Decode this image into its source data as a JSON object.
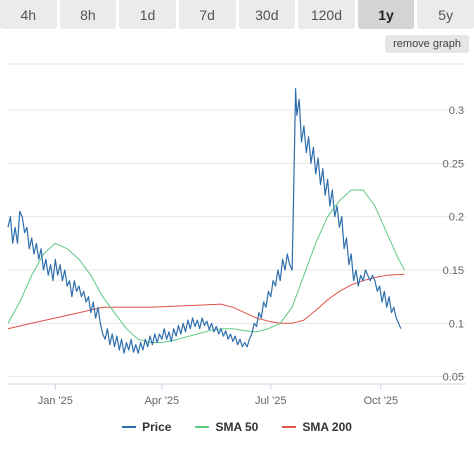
{
  "tabs": [
    {
      "label": "4h",
      "active": false
    },
    {
      "label": "8h",
      "active": false
    },
    {
      "label": "1d",
      "active": false
    },
    {
      "label": "7d",
      "active": false
    },
    {
      "label": "30d",
      "active": false
    },
    {
      "label": "120d",
      "active": false
    },
    {
      "label": "1y",
      "active": true
    },
    {
      "label": "5y",
      "active": false
    }
  ],
  "remove_graph_label": "remove graph",
  "colors": {
    "price": "#2f6fae",
    "sma50": "#5ec983",
    "sma200": "#e0554a",
    "grid": "#e6e6e6"
  },
  "chart_data": {
    "type": "line",
    "x_ticks": [
      "Jan '25",
      "Apr '25",
      "Jul '25",
      "Oct '25"
    ],
    "x_tick_days": [
      40,
      130,
      222,
      315
    ],
    "x_range_days": [
      0,
      365
    ],
    "y_ticks": [
      0.05,
      0.1,
      0.15,
      0.2,
      0.25,
      0.3
    ],
    "y_tick_labels": [
      "0.05",
      "0.1",
      "0.15",
      "0.2",
      "0.25",
      "0.3"
    ],
    "ylim": [
      0.045,
      0.345
    ],
    "legend_position": "bottom",
    "grid": true,
    "series": [
      {
        "name": "Price",
        "key": "price",
        "points": [
          [
            0,
            0.19
          ],
          [
            2,
            0.2
          ],
          [
            4,
            0.175
          ],
          [
            6,
            0.19
          ],
          [
            8,
            0.175
          ],
          [
            10,
            0.205
          ],
          [
            12,
            0.2
          ],
          [
            14,
            0.185
          ],
          [
            16,
            0.19
          ],
          [
            18,
            0.17
          ],
          [
            20,
            0.18
          ],
          [
            22,
            0.165
          ],
          [
            24,
            0.175
          ],
          [
            26,
            0.16
          ],
          [
            28,
            0.17
          ],
          [
            30,
            0.15
          ],
          [
            32,
            0.16
          ],
          [
            34,
            0.145
          ],
          [
            36,
            0.155
          ],
          [
            38,
            0.14
          ],
          [
            40,
            0.16
          ],
          [
            42,
            0.145
          ],
          [
            44,
            0.155
          ],
          [
            46,
            0.14
          ],
          [
            48,
            0.15
          ],
          [
            50,
            0.135
          ],
          [
            52,
            0.14
          ],
          [
            54,
            0.125
          ],
          [
            56,
            0.14
          ],
          [
            58,
            0.13
          ],
          [
            60,
            0.135
          ],
          [
            62,
            0.125
          ],
          [
            64,
            0.13
          ],
          [
            66,
            0.12
          ],
          [
            68,
            0.125
          ],
          [
            70,
            0.11
          ],
          [
            72,
            0.12
          ],
          [
            74,
            0.105
          ],
          [
            76,
            0.115
          ],
          [
            78,
            0.1
          ],
          [
            80,
            0.09
          ],
          [
            82,
            0.085
          ],
          [
            84,
            0.095
          ],
          [
            86,
            0.08
          ],
          [
            88,
            0.09
          ],
          [
            90,
            0.078
          ],
          [
            92,
            0.088
          ],
          [
            94,
            0.075
          ],
          [
            96,
            0.085
          ],
          [
            98,
            0.072
          ],
          [
            100,
            0.082
          ],
          [
            102,
            0.075
          ],
          [
            104,
            0.085
          ],
          [
            106,
            0.073
          ],
          [
            108,
            0.08
          ],
          [
            110,
            0.072
          ],
          [
            112,
            0.082
          ],
          [
            114,
            0.075
          ],
          [
            116,
            0.085
          ],
          [
            118,
            0.078
          ],
          [
            120,
            0.088
          ],
          [
            122,
            0.08
          ],
          [
            124,
            0.09
          ],
          [
            126,
            0.082
          ],
          [
            128,
            0.09
          ],
          [
            130,
            0.085
          ],
          [
            132,
            0.095
          ],
          [
            134,
            0.085
          ],
          [
            136,
            0.092
          ],
          [
            138,
            0.083
          ],
          [
            140,
            0.095
          ],
          [
            142,
            0.088
          ],
          [
            144,
            0.098
          ],
          [
            146,
            0.09
          ],
          [
            148,
            0.1
          ],
          [
            150,
            0.092
          ],
          [
            152,
            0.103
          ],
          [
            154,
            0.095
          ],
          [
            156,
            0.105
          ],
          [
            158,
            0.097
          ],
          [
            160,
            0.103
          ],
          [
            162,
            0.095
          ],
          [
            164,
            0.105
          ],
          [
            166,
            0.098
          ],
          [
            168,
            0.102
          ],
          [
            170,
            0.094
          ],
          [
            172,
            0.1
          ],
          [
            174,
            0.092
          ],
          [
            176,
            0.097
          ],
          [
            178,
            0.09
          ],
          [
            180,
            0.095
          ],
          [
            182,
            0.088
          ],
          [
            184,
            0.093
          ],
          [
            186,
            0.085
          ],
          [
            188,
            0.09
          ],
          [
            190,
            0.083
          ],
          [
            192,
            0.088
          ],
          [
            194,
            0.08
          ],
          [
            196,
            0.085
          ],
          [
            198,
            0.078
          ],
          [
            200,
            0.082
          ],
          [
            202,
            0.078
          ],
          [
            204,
            0.085
          ],
          [
            206,
            0.09
          ],
          [
            208,
            0.1
          ],
          [
            210,
            0.097
          ],
          [
            212,
            0.11
          ],
          [
            214,
            0.105
          ],
          [
            216,
            0.12
          ],
          [
            218,
            0.115
          ],
          [
            220,
            0.13
          ],
          [
            222,
            0.125
          ],
          [
            224,
            0.14
          ],
          [
            226,
            0.135
          ],
          [
            228,
            0.15
          ],
          [
            230,
            0.14
          ],
          [
            232,
            0.16
          ],
          [
            234,
            0.15
          ],
          [
            236,
            0.165
          ],
          [
            238,
            0.155
          ],
          [
            240,
            0.15
          ],
          [
            241,
            0.2
          ],
          [
            242,
            0.26
          ],
          [
            243,
            0.32
          ],
          [
            244,
            0.295
          ],
          [
            246,
            0.31
          ],
          [
            248,
            0.27
          ],
          [
            250,
            0.285
          ],
          [
            252,
            0.26
          ],
          [
            254,
            0.275
          ],
          [
            256,
            0.25
          ],
          [
            258,
            0.265
          ],
          [
            260,
            0.24
          ],
          [
            262,
            0.255
          ],
          [
            264,
            0.23
          ],
          [
            266,
            0.245
          ],
          [
            268,
            0.22
          ],
          [
            270,
            0.235
          ],
          [
            272,
            0.21
          ],
          [
            274,
            0.225
          ],
          [
            276,
            0.2
          ],
          [
            278,
            0.21
          ],
          [
            280,
            0.19
          ],
          [
            282,
            0.2
          ],
          [
            284,
            0.17
          ],
          [
            286,
            0.18
          ],
          [
            288,
            0.155
          ],
          [
            290,
            0.165
          ],
          [
            292,
            0.14
          ],
          [
            294,
            0.15
          ],
          [
            296,
            0.135
          ],
          [
            298,
            0.145
          ],
          [
            300,
            0.14
          ],
          [
            302,
            0.15
          ],
          [
            304,
            0.145
          ],
          [
            306,
            0.14
          ],
          [
            308,
            0.145
          ],
          [
            310,
            0.14
          ],
          [
            312,
            0.13
          ],
          [
            314,
            0.135
          ],
          [
            316,
            0.12
          ],
          [
            318,
            0.13
          ],
          [
            320,
            0.115
          ],
          [
            322,
            0.125
          ],
          [
            324,
            0.11
          ],
          [
            326,
            0.115
          ],
          [
            328,
            0.105
          ],
          [
            330,
            0.1
          ],
          [
            332,
            0.095
          ]
        ]
      },
      {
        "name": "SMA 50",
        "key": "sma50",
        "points": [
          [
            0,
            0.1
          ],
          [
            10,
            0.12
          ],
          [
            20,
            0.145
          ],
          [
            30,
            0.165
          ],
          [
            40,
            0.175
          ],
          [
            50,
            0.17
          ],
          [
            60,
            0.16
          ],
          [
            70,
            0.145
          ],
          [
            80,
            0.125
          ],
          [
            90,
            0.11
          ],
          [
            100,
            0.095
          ],
          [
            110,
            0.085
          ],
          [
            120,
            0.082
          ],
          [
            130,
            0.082
          ],
          [
            140,
            0.084
          ],
          [
            150,
            0.087
          ],
          [
            160,
            0.09
          ],
          [
            170,
            0.093
          ],
          [
            180,
            0.095
          ],
          [
            190,
            0.095
          ],
          [
            200,
            0.093
          ],
          [
            210,
            0.092
          ],
          [
            220,
            0.095
          ],
          [
            230,
            0.1
          ],
          [
            240,
            0.115
          ],
          [
            250,
            0.145
          ],
          [
            260,
            0.175
          ],
          [
            270,
            0.2
          ],
          [
            280,
            0.215
          ],
          [
            290,
            0.225
          ],
          [
            300,
            0.225
          ],
          [
            310,
            0.21
          ],
          [
            320,
            0.185
          ],
          [
            330,
            0.16
          ],
          [
            335,
            0.15
          ]
        ]
      },
      {
        "name": "SMA 200",
        "key": "sma200",
        "points": [
          [
            0,
            0.095
          ],
          [
            20,
            0.1
          ],
          [
            40,
            0.105
          ],
          [
            60,
            0.11
          ],
          [
            80,
            0.115
          ],
          [
            100,
            0.115
          ],
          [
            120,
            0.115
          ],
          [
            140,
            0.116
          ],
          [
            160,
            0.117
          ],
          [
            180,
            0.118
          ],
          [
            190,
            0.115
          ],
          [
            200,
            0.11
          ],
          [
            210,
            0.105
          ],
          [
            220,
            0.102
          ],
          [
            230,
            0.1
          ],
          [
            240,
            0.1
          ],
          [
            250,
            0.103
          ],
          [
            260,
            0.112
          ],
          [
            270,
            0.122
          ],
          [
            280,
            0.13
          ],
          [
            290,
            0.136
          ],
          [
            300,
            0.14
          ],
          [
            310,
            0.143
          ],
          [
            320,
            0.145
          ],
          [
            335,
            0.146
          ]
        ]
      }
    ]
  }
}
